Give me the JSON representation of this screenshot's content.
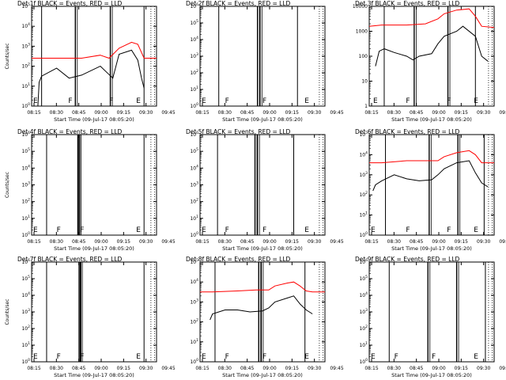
{
  "figure": {
    "title": "",
    "background": "#ffffff"
  },
  "colors": {
    "events": "#000000",
    "lld": "#ff0000",
    "axes": "#000000"
  },
  "chart_data": [
    {
      "type": "line",
      "title": "Det 1f BLACK = Events, RED = LLD",
      "xlabel": "Start Time (09-Jul-17 08:05:20)",
      "ylabel": "Counts/sec",
      "x_ticks": [
        "08:15",
        "08:30",
        "08:45",
        "09:00",
        "09:15",
        "09:30",
        "09:45"
      ],
      "y_ticks": [
        "10^0",
        "10^1",
        "10^2",
        "10^3",
        "10^4",
        "10^5"
      ],
      "ylim": [
        1,
        100000
      ],
      "log_y": true,
      "flags": [
        {
          "text": "E",
          "t": 0.0
        },
        {
          "text": "F",
          "t": 0.3
        },
        {
          "text": "F",
          "t": 0.65
        },
        {
          "text": "E",
          "t": 0.88
        }
      ],
      "series": [
        {
          "name": "Events",
          "color": "#000000",
          "points": [
            [
              0.05,
              0
            ],
            [
              0.06,
              1.2
            ],
            [
              0.08,
              1.5
            ],
            [
              0.2,
              1.9
            ],
            [
              0.3,
              1.4
            ],
            [
              0.4,
              1.55
            ],
            [
              0.55,
              2.0
            ],
            [
              0.6,
              1.7
            ],
            [
              0.65,
              1.4
            ],
            [
              0.7,
              2.6
            ],
            [
              0.8,
              2.8
            ],
            [
              0.85,
              2.3
            ],
            [
              0.88,
              1.4
            ],
            [
              0.9,
              0.9
            ]
          ]
        },
        {
          "name": "LLD",
          "color": "#ff0000",
          "points": [
            [
              0,
              2.4
            ],
            [
              0.1,
              2.4
            ],
            [
              0.4,
              2.4
            ],
            [
              0.55,
              2.55
            ],
            [
              0.62,
              2.4
            ],
            [
              0.7,
              2.9
            ],
            [
              0.8,
              3.2
            ],
            [
              0.85,
              3.1
            ],
            [
              0.9,
              2.4
            ],
            [
              1.0,
              2.4
            ]
          ]
        }
      ]
    },
    {
      "type": "line",
      "title": "Det 2f BLACK = Events, RED = LLD",
      "xlabel": "Start Time (09-Jul-17 08:05:20)",
      "ylabel": "",
      "x_ticks": [
        "08:15",
        "08:30",
        "08:45",
        "09:00",
        "09:15",
        "09:30",
        "09:45"
      ],
      "y_ticks": [
        "10^0",
        "10^1",
        "10^2",
        "10^3",
        "10^4",
        "10^5",
        "10^6"
      ],
      "ylim": [
        1,
        1000000
      ],
      "log_y": true,
      "flags": [
        {
          "text": "E",
          "t": 0.0
        },
        {
          "text": "F",
          "t": 0.2
        },
        {
          "text": "F",
          "t": 0.52
        },
        {
          "text": "E",
          "t": 0.88
        }
      ],
      "series": []
    },
    {
      "type": "line",
      "title": "Det 3f BLACK = Events, RED = LLD",
      "xlabel": "Start Time (09-Jul-17 08:05:20)",
      "ylabel": "",
      "x_ticks": [
        "08:15",
        "08:30",
        "08:45",
        "09:00",
        "09:15",
        "09:30",
        "09:45"
      ],
      "y_ticks": [
        "1",
        "10",
        "100",
        "1000",
        "10000"
      ],
      "ylim": [
        1,
        10000
      ],
      "log_y": true,
      "flags": [
        {
          "text": "E",
          "t": 0.02
        },
        {
          "text": "F",
          "t": 0.3
        },
        {
          "text": "F",
          "t": 0.65
        },
        {
          "text": "E",
          "t": 0.88
        }
      ],
      "series": [
        {
          "name": "Events",
          "color": "#000000",
          "points": [
            [
              0.05,
              1.6
            ],
            [
              0.08,
              2.2
            ],
            [
              0.12,
              2.3
            ],
            [
              0.2,
              2.15
            ],
            [
              0.3,
              2.0
            ],
            [
              0.35,
              1.85
            ],
            [
              0.4,
              2.0
            ],
            [
              0.5,
              2.1
            ],
            [
              0.55,
              2.5
            ],
            [
              0.6,
              2.8
            ],
            [
              0.7,
              3.0
            ],
            [
              0.75,
              3.2
            ],
            [
              0.85,
              2.8
            ],
            [
              0.9,
              2.0
            ],
            [
              0.95,
              1.8
            ]
          ]
        },
        {
          "name": "LLD",
          "color": "#ff0000",
          "points": [
            [
              0,
              3.2
            ],
            [
              0.1,
              3.25
            ],
            [
              0.3,
              3.25
            ],
            [
              0.45,
              3.3
            ],
            [
              0.55,
              3.5
            ],
            [
              0.6,
              3.7
            ],
            [
              0.7,
              3.85
            ],
            [
              0.8,
              3.9
            ],
            [
              0.85,
              3.6
            ],
            [
              0.9,
              3.2
            ],
            [
              1.0,
              3.15
            ]
          ]
        }
      ]
    },
    {
      "type": "line",
      "title": "Det 4f BLACK = Events, RED = LLD",
      "xlabel": "Start Time (09-Jul-17 08:05:20)",
      "ylabel": "Counts/sec",
      "x_ticks": [
        "08:15",
        "08:30",
        "08:45",
        "09:00",
        "09:15",
        "09:30",
        "09:45"
      ],
      "y_ticks": [
        "10^0",
        "10^1",
        "10^2",
        "10^3",
        "10^4",
        "10^5",
        "10^6"
      ],
      "ylim": [
        1,
        1000000
      ],
      "log_y": true,
      "flags": [
        {
          "text": "E",
          "t": 0.0
        },
        {
          "text": "F",
          "t": 0.2
        },
        {
          "text": "F",
          "t": 0.4
        },
        {
          "text": "E",
          "t": 0.88
        }
      ],
      "series": []
    },
    {
      "type": "line",
      "title": "Det 5f BLACK = Events, RED = LLD",
      "xlabel": "Start Time (09-Jul-17 08:05:20)",
      "ylabel": "",
      "x_ticks": [
        "08:15",
        "08:30",
        "08:45",
        "09:00",
        "09:15",
        "09:30",
        "09:45"
      ],
      "y_ticks": [
        "10^0",
        "10^1",
        "10^2",
        "10^3",
        "10^4",
        "10^5",
        "10^6"
      ],
      "ylim": [
        1,
        1000000
      ],
      "log_y": true,
      "flags": [
        {
          "text": "E",
          "t": 0.0
        },
        {
          "text": "F",
          "t": 0.2
        },
        {
          "text": "F",
          "t": 0.52
        },
        {
          "text": "E",
          "t": 0.88
        }
      ],
      "series": []
    },
    {
      "type": "line",
      "title": "Det 6f BLACK = Events, RED = LLD",
      "xlabel": "Start Time (09-Jul-17 08:05:20)",
      "ylabel": "",
      "x_ticks": [
        "08:15",
        "08:30",
        "08:45",
        "09:00",
        "09:15",
        "09:30",
        "09:45"
      ],
      "y_ticks": [
        "10^0",
        "10^1",
        "10^2",
        "10^3",
        "10^4",
        "10^5"
      ],
      "ylim": [
        1,
        100000
      ],
      "log_y": true,
      "flags": [
        {
          "text": "E",
          "t": 0.0
        },
        {
          "text": "F",
          "t": 0.3
        },
        {
          "text": "F",
          "t": 0.65
        },
        {
          "text": "E",
          "t": 0.88
        }
      ],
      "series": [
        {
          "name": "Events",
          "color": "#000000",
          "points": [
            [
              0.03,
              2.2
            ],
            [
              0.05,
              2.5
            ],
            [
              0.1,
              2.7
            ],
            [
              0.2,
              3.0
            ],
            [
              0.3,
              2.8
            ],
            [
              0.4,
              2.7
            ],
            [
              0.5,
              2.75
            ],
            [
              0.55,
              3.0
            ],
            [
              0.6,
              3.3
            ],
            [
              0.7,
              3.6
            ],
            [
              0.8,
              3.7
            ],
            [
              0.85,
              3.1
            ],
            [
              0.9,
              2.6
            ],
            [
              0.95,
              2.4
            ]
          ]
        },
        {
          "name": "LLD",
          "color": "#ff0000",
          "points": [
            [
              0,
              3.6
            ],
            [
              0.1,
              3.6
            ],
            [
              0.3,
              3.7
            ],
            [
              0.55,
              3.7
            ],
            [
              0.6,
              3.9
            ],
            [
              0.7,
              4.1
            ],
            [
              0.8,
              4.2
            ],
            [
              0.85,
              4.0
            ],
            [
              0.9,
              3.6
            ],
            [
              1.0,
              3.6
            ]
          ]
        }
      ]
    },
    {
      "type": "line",
      "title": "Det 7f BLACK = Events, RED = LLD",
      "xlabel": "Start Time (09-Jul-17 08:05:20)",
      "ylabel": "Counts/sec",
      "x_ticks": [
        "08:15",
        "08:30",
        "08:45",
        "09:00",
        "09:15",
        "09:30",
        "09:45"
      ],
      "y_ticks": [
        "10^0",
        "10^1",
        "10^2",
        "10^3",
        "10^4",
        "10^5",
        "10^6"
      ],
      "ylim": [
        1,
        1000000
      ],
      "log_y": true,
      "flags": [
        {
          "text": "E",
          "t": 0.0
        },
        {
          "text": "F",
          "t": 0.2
        },
        {
          "text": "F",
          "t": 0.4
        },
        {
          "text": "E",
          "t": 0.88
        }
      ],
      "series": []
    },
    {
      "type": "line",
      "title": "Det 8f BLACK = Events, RED = LLD",
      "xlabel": "Start Time (09-Jul-17 08:05:20)",
      "ylabel": "",
      "x_ticks": [
        "08:15",
        "08:30",
        "08:45",
        "09:00",
        "09:15",
        "09:30",
        "09:45"
      ],
      "y_ticks": [
        "10^0",
        "10^1",
        "10^2",
        "10^3",
        "10^4",
        "10^5"
      ],
      "ylim": [
        1,
        100000
      ],
      "log_y": true,
      "flags": [
        {
          "text": "E",
          "t": 0.0
        },
        {
          "text": "F",
          "t": 0.2
        },
        {
          "text": "F",
          "t": 0.52
        },
        {
          "text": "E",
          "t": 0.88
        }
      ],
      "series": [
        {
          "name": "Events",
          "color": "#000000",
          "points": [
            [
              0.08,
              2.1
            ],
            [
              0.1,
              2.4
            ],
            [
              0.2,
              2.6
            ],
            [
              0.3,
              2.6
            ],
            [
              0.4,
              2.5
            ],
            [
              0.5,
              2.55
            ],
            [
              0.55,
              2.7
            ],
            [
              0.6,
              3.0
            ],
            [
              0.7,
              3.2
            ],
            [
              0.75,
              3.3
            ],
            [
              0.8,
              2.9
            ],
            [
              0.85,
              2.6
            ],
            [
              0.9,
              2.4
            ]
          ]
        },
        {
          "name": "LLD",
          "color": "#ff0000",
          "points": [
            [
              0,
              3.5
            ],
            [
              0.1,
              3.5
            ],
            [
              0.3,
              3.55
            ],
            [
              0.45,
              3.6
            ],
            [
              0.55,
              3.6
            ],
            [
              0.6,
              3.8
            ],
            [
              0.7,
              3.95
            ],
            [
              0.75,
              4.0
            ],
            [
              0.8,
              3.8
            ],
            [
              0.85,
              3.55
            ],
            [
              0.9,
              3.5
            ],
            [
              1.0,
              3.5
            ]
          ]
        }
      ]
    },
    {
      "type": "line",
      "title": "Det 9f BLACK = Events, RED = LLD",
      "xlabel": "Start Time (09-Jul-17 08:05:20)",
      "ylabel": "",
      "x_ticks": [
        "08:15",
        "08:30",
        "08:45",
        "09:00",
        "09:15",
        "09:30",
        "09:45"
      ],
      "y_ticks": [
        "10^0",
        "10^1",
        "10^2",
        "10^3",
        "10^4",
        "10^5",
        "10^6"
      ],
      "ylim": [
        1,
        1000000
      ],
      "log_y": true,
      "flags": [
        {
          "text": "E",
          "t": 0.0
        },
        {
          "text": "F",
          "t": 0.2
        },
        {
          "text": "F",
          "t": 0.52
        },
        {
          "text": "E",
          "t": 0.88
        }
      ],
      "series": []
    }
  ]
}
